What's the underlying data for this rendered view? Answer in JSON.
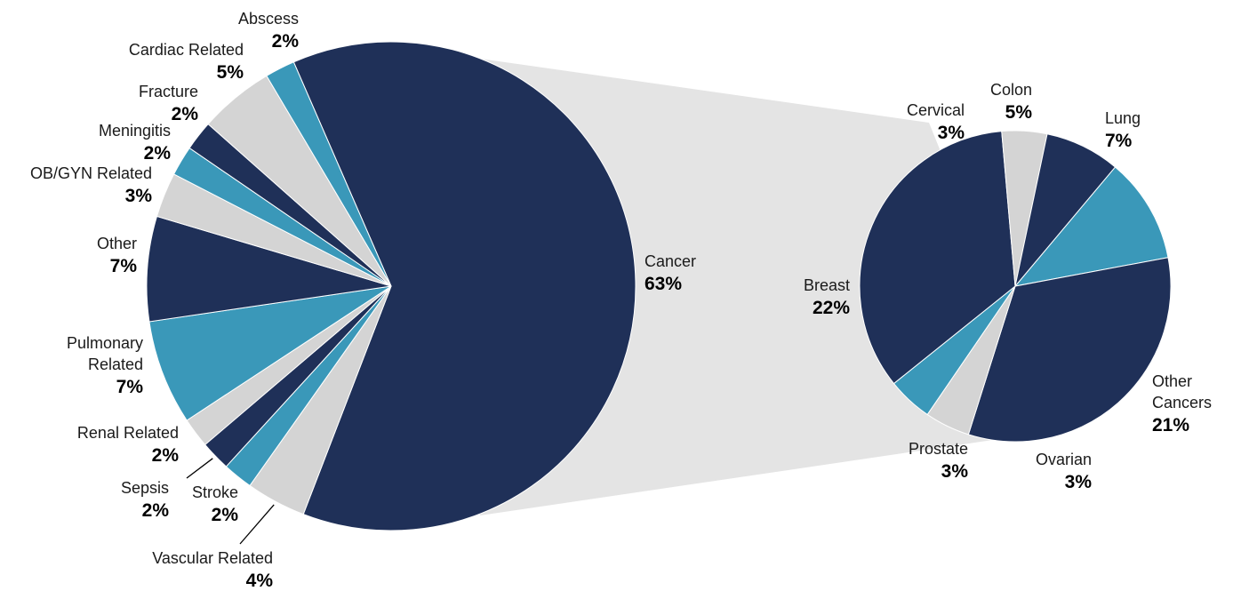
{
  "chart_data": [
    {
      "type": "pie",
      "colors": {
        "navy": "#1f3058",
        "teal": "#3a98b9",
        "grey": "#d4d4d4",
        "connector": "#e4e4e4"
      },
      "slices": [
        {
          "name": "Cancer",
          "pct": "63%",
          "value": 63,
          "color": "navy"
        },
        {
          "name": "Vascular Related",
          "pct": "4%",
          "value": 4,
          "color": "grey"
        },
        {
          "name": "Stroke",
          "pct": "2%",
          "value": 2,
          "color": "teal"
        },
        {
          "name": "Sepsis",
          "pct": "2%",
          "value": 2,
          "color": "navy"
        },
        {
          "name": "Renal Related",
          "pct": "2%",
          "value": 2,
          "color": "grey"
        },
        {
          "name": "Pulmonary Related",
          "pct": "7%",
          "value": 7,
          "color": "teal"
        },
        {
          "name": "Other",
          "pct": "7%",
          "value": 7,
          "color": "navy"
        },
        {
          "name": "OB/GYN Related",
          "pct": "3%",
          "value": 3,
          "color": "grey"
        },
        {
          "name": "Meningitis",
          "pct": "2%",
          "value": 2,
          "color": "teal"
        },
        {
          "name": "Fracture",
          "pct": "2%",
          "value": 2,
          "color": "navy"
        },
        {
          "name": "Cardiac Related",
          "pct": "5%",
          "value": 5,
          "color": "grey"
        },
        {
          "name": "Abscess",
          "pct": "2%",
          "value": 2,
          "color": "teal"
        }
      ]
    },
    {
      "type": "pie",
      "breakdown_of": "Cancer",
      "slices": [
        {
          "name": "Lung",
          "pct": "7%",
          "value": 7,
          "color": "teal"
        },
        {
          "name": "Other Cancers",
          "pct": "21%",
          "value": 21,
          "color": "navy"
        },
        {
          "name": "Ovarian",
          "pct": "3%",
          "value": 3,
          "color": "grey"
        },
        {
          "name": "Prostate",
          "pct": "3%",
          "value": 3,
          "color": "teal"
        },
        {
          "name": "Breast",
          "pct": "22%",
          "value": 22,
          "color": "navy"
        },
        {
          "name": "Cervical",
          "pct": "3%",
          "value": 3,
          "color": "grey"
        },
        {
          "name": "Colon",
          "pct": "5%",
          "value": 5,
          "color": "navy"
        }
      ]
    }
  ]
}
